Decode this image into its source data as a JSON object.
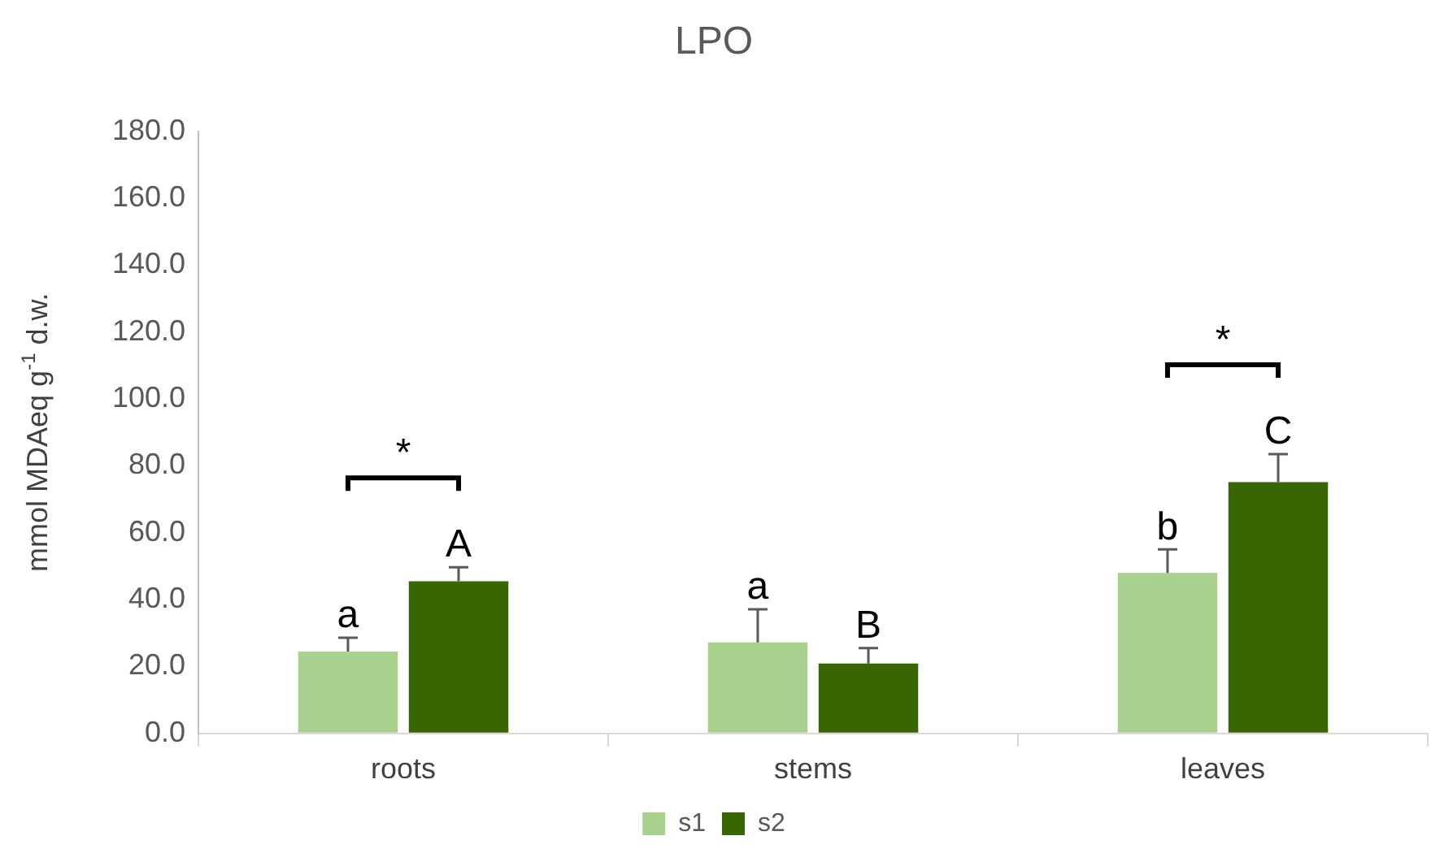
{
  "chart_data": {
    "type": "bar",
    "title": "LPO",
    "ylabel": "mmol MDAeq g$^{-1}$ d.w.",
    "categories": [
      "roots",
      "stems",
      "leaves"
    ],
    "series": [
      {
        "name": "s1",
        "color": "#a9d18e",
        "values": [
          24.5,
          27.2,
          48.0
        ],
        "errors": [
          [
            24.5,
            28.6
          ],
          [
            27.2,
            37.1
          ],
          [
            48.0,
            55.0
          ]
        ],
        "value_labels": [
          "a",
          "a",
          "b"
        ]
      },
      {
        "name": "s2",
        "color": "#376602",
        "values": [
          45.5,
          20.9,
          75.1
        ],
        "errors": [
          [
            45.5,
            49.7
          ],
          [
            20.9,
            25.5
          ],
          [
            75.1,
            83.5
          ]
        ],
        "value_labels": [
          "A",
          "B",
          "C"
        ]
      }
    ],
    "ylim": [
      0,
      180
    ],
    "yticks": [
      {
        "value": 0,
        "label": "0.0"
      },
      {
        "value": 20,
        "label": "20.0"
      },
      {
        "value": 40,
        "label": "40.0"
      },
      {
        "value": 60,
        "label": "60.0"
      },
      {
        "value": 80,
        "label": "80.0"
      },
      {
        "value": 100,
        "label": "100.0"
      },
      {
        "value": 120,
        "label": "120.0"
      },
      {
        "value": 140,
        "label": "140.0"
      },
      {
        "value": 160,
        "label": "160.0"
      },
      {
        "value": 180,
        "label": "180.0"
      }
    ],
    "annotations": [
      "*",
      "*"
    ],
    "grid": false,
    "legend": "bottom"
  }
}
